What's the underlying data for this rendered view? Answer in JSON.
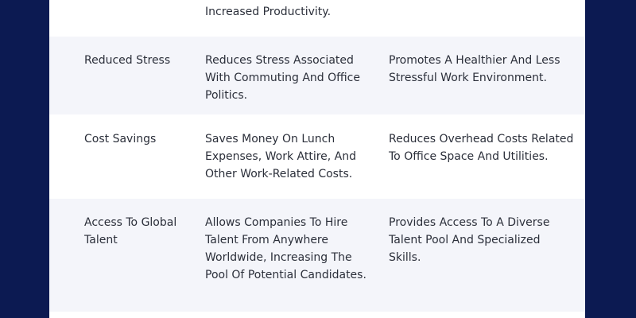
{
  "table": {
    "rows": [
      {
        "benefit": "",
        "employee": "Increased Productivity.",
        "employer": ""
      },
      {
        "benefit": "Reduced Stress",
        "employee": "Reduces Stress Associated With Commuting And Office Politics.",
        "employer": "Promotes A Healthier And Less Stressful Work Environment."
      },
      {
        "benefit": "Cost Savings",
        "employee": "Saves Money On Lunch Expenses, Work Attire, And Other Work-Related Costs.",
        "employer": "Reduces Overhead Costs Related To Office Space And Utilities."
      },
      {
        "benefit": "Access To Global Talent",
        "employee": "Allows Companies To Hire Talent From Anywhere Worldwide, Increasing The Pool Of Potential Candidates.",
        "employer": "Provides Access To A Diverse Talent Pool And Specialized Skills."
      }
    ]
  }
}
